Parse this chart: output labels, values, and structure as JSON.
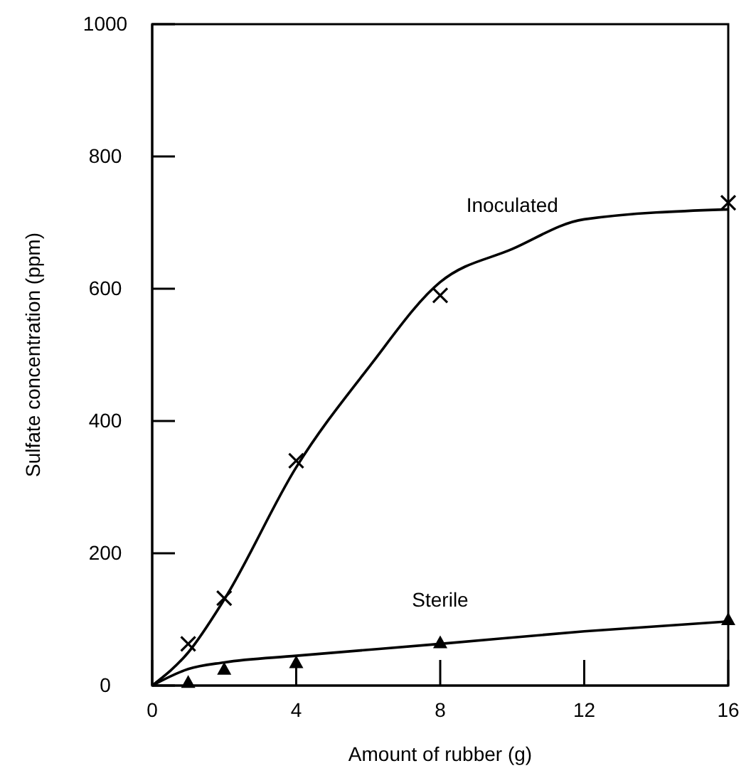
{
  "chart_data": {
    "type": "line",
    "xlabel": "Amount of rubber (g)",
    "ylabel": "Sulfate concentration (ppm)",
    "xlim": [
      0,
      16
    ],
    "ylim": [
      0,
      1000
    ],
    "xticks": [
      0,
      4,
      8,
      12,
      16
    ],
    "yticks": [
      0,
      200,
      400,
      600,
      800,
      1000
    ],
    "grid": false,
    "series": [
      {
        "name": "Inoculated",
        "color": "#000000",
        "marker": "none",
        "x": [
          0,
          1,
          2,
          4,
          6,
          8,
          10,
          12,
          16
        ],
        "values": [
          0,
          50,
          130,
          330,
          480,
          610,
          660,
          705,
          720
        ]
      },
      {
        "name": "Sterile",
        "color": "#000000",
        "marker": "none",
        "x": [
          0,
          1,
          2,
          4,
          8,
          12,
          16
        ],
        "values": [
          0,
          25,
          35,
          45,
          63,
          82,
          97
        ]
      },
      {
        "type": "scatter",
        "color": "#000000",
        "marker": "cross",
        "x": [
          1,
          2,
          4,
          8,
          16
        ],
        "values": [
          63,
          132,
          340,
          590,
          730
        ]
      },
      {
        "type": "scatter",
        "color": "#000000",
        "marker": "triangle",
        "x": [
          1,
          2,
          4,
          8,
          16
        ],
        "values": [
          5,
          25,
          35,
          65,
          100
        ]
      }
    ]
  }
}
